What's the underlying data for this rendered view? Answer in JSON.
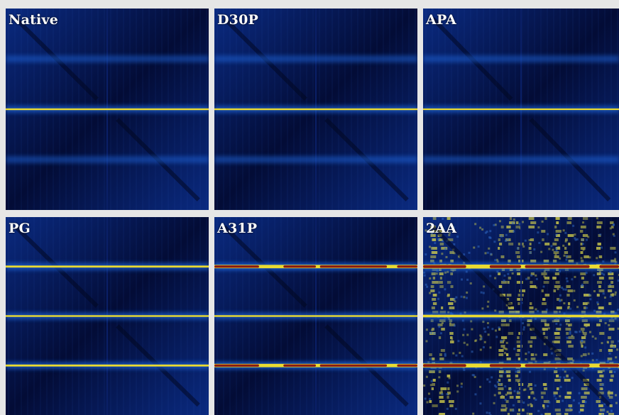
{
  "panels": [
    {
      "label": "Native",
      "bands": [
        {
          "level": 0.25,
          "intensity": 0.45
        },
        {
          "level": 0.5,
          "intensity": 1.0
        },
        {
          "level": 0.75,
          "intensity": 0.45
        }
      ],
      "noise": 0.0
    },
    {
      "label": "D30P",
      "bands": [
        {
          "level": 0.25,
          "intensity": 0.5
        },
        {
          "level": 0.5,
          "intensity": 1.0
        },
        {
          "level": 0.75,
          "intensity": 0.55
        }
      ],
      "noise": 0.0
    },
    {
      "label": "APA",
      "bands": [
        {
          "level": 0.25,
          "intensity": 0.5
        },
        {
          "level": 0.5,
          "intensity": 0.95
        },
        {
          "level": 0.75,
          "intensity": 0.55
        }
      ],
      "noise": 0.0
    },
    {
      "label": "PG",
      "bands": [
        {
          "level": 0.25,
          "intensity": 1.1
        },
        {
          "level": 0.5,
          "intensity": 1.0
        },
        {
          "level": 0.75,
          "intensity": 1.1
        }
      ],
      "noise": 0.0
    },
    {
      "label": "A31P",
      "bands": [
        {
          "level": 0.25,
          "intensity": 1.6
        },
        {
          "level": 0.5,
          "intensity": 1.0
        },
        {
          "level": 0.75,
          "intensity": 1.6
        }
      ],
      "noise": 0.0
    },
    {
      "label": "2AA",
      "bands": [
        {
          "level": 0.25,
          "intensity": 1.8
        },
        {
          "level": 0.5,
          "intensity": 1.3
        },
        {
          "level": 0.75,
          "intensity": 1.8
        }
      ],
      "noise": 1.0
    }
  ],
  "colors": {
    "background": "#04124a",
    "glow": "#1c64d8",
    "band_yellow": "#f5e32a",
    "band_red": "#8a1a10",
    "noise_yellow": "#e8e24a",
    "divider": "#0a1f66",
    "frame": "#d8c98a"
  }
}
